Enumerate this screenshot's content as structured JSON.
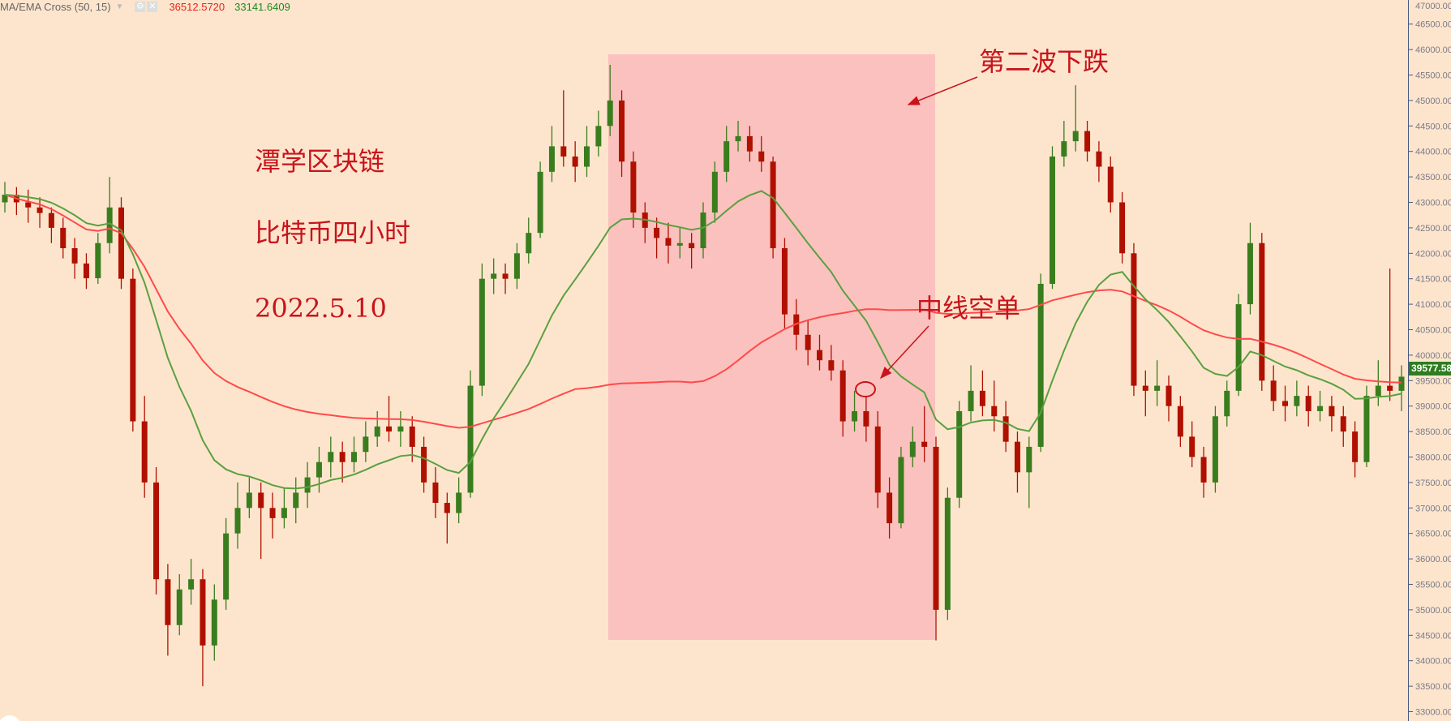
{
  "indicator": {
    "name": "MA/EMA Cross (50, 15)",
    "ma_value": "36512.5720",
    "ema_value": "33141.6409",
    "icons": [
      "caret-down-icon",
      "gear-icon",
      "close-icon"
    ]
  },
  "annotations": {
    "title": "潭学区块链",
    "subtitle": "比特币四小时",
    "date": "2022.5.10",
    "wave_label": "第二波下跌",
    "short_label": "中线空单"
  },
  "colors": {
    "background": "#fde5cd",
    "up": "#3a7d1e",
    "down": "#b01000",
    "ma50": "#ff4a4a",
    "ema15": "#5aa040",
    "highlight": "#fbbcbc",
    "annotation": "#c8141c"
  },
  "chart_data": {
    "type": "candlestick",
    "title": "",
    "ylim": [
      32900,
      47000
    ],
    "yticks": [
      47000,
      46500,
      46000,
      45500,
      45000,
      44500,
      44000,
      43500,
      43000,
      42500,
      42000,
      41500,
      41000,
      40500,
      40000,
      39500,
      39000,
      38500,
      38000,
      37500,
      37000,
      36500,
      36000,
      35500,
      35000,
      34500,
      34000,
      33500,
      33000
    ],
    "last_price": "39577.58",
    "indicators": [
      {
        "name": "MA",
        "period": 50
      },
      {
        "name": "EMA",
        "period": 15
      }
    ],
    "candles": [
      [
        43000,
        43400,
        42800,
        43150
      ],
      [
        43150,
        43300,
        42750,
        43000
      ],
      [
        43000,
        43250,
        42600,
        42900
      ],
      [
        42900,
        43100,
        42500,
        42790
      ],
      [
        42790,
        42900,
        42200,
        42500
      ],
      [
        42500,
        42700,
        41900,
        42100
      ],
      [
        42100,
        42300,
        41500,
        41800
      ],
      [
        41800,
        42000,
        41300,
        41510
      ],
      [
        41510,
        42400,
        41400,
        42200
      ],
      [
        42200,
        43500,
        42000,
        42900
      ],
      [
        42900,
        43100,
        41300,
        41500
      ],
      [
        41500,
        41700,
        38500,
        38700
      ],
      [
        38700,
        39200,
        37200,
        37500
      ],
      [
        37500,
        37800,
        35300,
        35600
      ],
      [
        35600,
        35900,
        34100,
        34700
      ],
      [
        34700,
        35700,
        34500,
        35400
      ],
      [
        35400,
        36000,
        35100,
        35600
      ],
      [
        35600,
        35800,
        33500,
        34300
      ],
      [
        34300,
        35500,
        34000,
        35200
      ],
      [
        35200,
        36800,
        35000,
        36500
      ],
      [
        36500,
        37500,
        36200,
        37000
      ],
      [
        37000,
        37600,
        36800,
        37300
      ],
      [
        37300,
        37500,
        36000,
        37000
      ],
      [
        37000,
        37300,
        36400,
        36800
      ],
      [
        36800,
        37400,
        36600,
        37000
      ],
      [
        37000,
        37600,
        36700,
        37300
      ],
      [
        37300,
        37900,
        37000,
        37600
      ],
      [
        37600,
        38200,
        37300,
        37900
      ],
      [
        37900,
        38400,
        37600,
        38100
      ],
      [
        38100,
        38300,
        37500,
        37900
      ],
      [
        37900,
        38400,
        37700,
        38100
      ],
      [
        38100,
        38700,
        37900,
        38400
      ],
      [
        38400,
        38900,
        38200,
        38600
      ],
      [
        38600,
        39200,
        38300,
        38500
      ],
      [
        38500,
        38900,
        38200,
        38600
      ],
      [
        38600,
        38800,
        37900,
        38200
      ],
      [
        38200,
        38400,
        37300,
        37500
      ],
      [
        37500,
        37800,
        36800,
        37100
      ],
      [
        37100,
        37300,
        36300,
        36900
      ],
      [
        36900,
        37600,
        36700,
        37300
      ],
      [
        37300,
        39700,
        37200,
        39400
      ],
      [
        39400,
        41800,
        39200,
        41500
      ],
      [
        41500,
        41900,
        41200,
        41600
      ],
      [
        41600,
        41800,
        41200,
        41500
      ],
      [
        41500,
        42200,
        41300,
        42000
      ],
      [
        42000,
        42700,
        41800,
        42400
      ],
      [
        42400,
        43800,
        42300,
        43600
      ],
      [
        43600,
        44500,
        43400,
        44100
      ],
      [
        44100,
        45200,
        43700,
        43900
      ],
      [
        43900,
        44200,
        43400,
        43700
      ],
      [
        43700,
        44500,
        43500,
        44100
      ],
      [
        44100,
        44800,
        43900,
        44500
      ],
      [
        44500,
        45700,
        44300,
        45000
      ],
      [
        45000,
        45200,
        43500,
        43800
      ],
      [
        43800,
        44000,
        42500,
        42800
      ],
      [
        42800,
        43000,
        42200,
        42500
      ],
      [
        42500,
        42700,
        41900,
        42300
      ],
      [
        42300,
        42600,
        41800,
        42150
      ],
      [
        42150,
        42500,
        41900,
        42200
      ],
      [
        42200,
        42400,
        41700,
        42100
      ],
      [
        42100,
        43000,
        41900,
        42800
      ],
      [
        42800,
        43800,
        42600,
        43600
      ],
      [
        43600,
        44500,
        43400,
        44200
      ],
      [
        44200,
        44600,
        44000,
        44300
      ],
      [
        44300,
        44500,
        43800,
        44000
      ],
      [
        44000,
        44300,
        43600,
        43800
      ],
      [
        43800,
        43900,
        41900,
        42100
      ],
      [
        42100,
        42300,
        40500,
        40800
      ],
      [
        40800,
        41100,
        40100,
        40400
      ],
      [
        40400,
        40700,
        39800,
        40100
      ],
      [
        40100,
        40400,
        39700,
        39900
      ],
      [
        39900,
        40200,
        39500,
        39700
      ],
      [
        39700,
        39900,
        38400,
        38700
      ],
      [
        38700,
        39300,
        38500,
        38900
      ],
      [
        38900,
        39200,
        38300,
        38600
      ],
      [
        38600,
        38900,
        37000,
        37300
      ],
      [
        37300,
        37600,
        36400,
        36700
      ],
      [
        36700,
        38200,
        36600,
        38000
      ],
      [
        38000,
        38600,
        37800,
        38300
      ],
      [
        38300,
        39000,
        37900,
        38200
      ],
      [
        38200,
        38400,
        34400,
        35000
      ],
      [
        35000,
        37400,
        34800,
        37200
      ],
      [
        37200,
        39100,
        37000,
        38900
      ],
      [
        38900,
        39800,
        38700,
        39300
      ],
      [
        39300,
        39700,
        38800,
        39000
      ],
      [
        39000,
        39500,
        38500,
        38800
      ],
      [
        38800,
        39100,
        38100,
        38300
      ],
      [
        38300,
        38500,
        37300,
        37700
      ],
      [
        37700,
        38400,
        37000,
        38200
      ],
      [
        38200,
        41600,
        38100,
        41400
      ],
      [
        41400,
        44100,
        41300,
        43900
      ],
      [
        43900,
        44600,
        43700,
        44200
      ],
      [
        44200,
        45300,
        44000,
        44400
      ],
      [
        44400,
        44600,
        43800,
        44000
      ],
      [
        44000,
        44200,
        43400,
        43700
      ],
      [
        43700,
        43900,
        42800,
        43000
      ],
      [
        43000,
        43200,
        41800,
        42000
      ],
      [
        42000,
        42200,
        39200,
        39400
      ],
      [
        39400,
        39700,
        38800,
        39300
      ],
      [
        39300,
        39900,
        39000,
        39400
      ],
      [
        39400,
        39600,
        38700,
        39000
      ],
      [
        39000,
        39200,
        38200,
        38400
      ],
      [
        38400,
        38700,
        37800,
        38000
      ],
      [
        38000,
        38200,
        37200,
        37500
      ],
      [
        37500,
        39000,
        37300,
        38800
      ],
      [
        38800,
        39500,
        38600,
        39300
      ],
      [
        39300,
        41200,
        39200,
        41000
      ],
      [
        41000,
        42600,
        40800,
        42200
      ],
      [
        42200,
        42400,
        39300,
        39500
      ],
      [
        39500,
        39800,
        38900,
        39100
      ],
      [
        39100,
        39400,
        38700,
        39000
      ],
      [
        39000,
        39500,
        38800,
        39200
      ],
      [
        39200,
        39400,
        38600,
        38900
      ],
      [
        38900,
        39300,
        38700,
        39000
      ],
      [
        39000,
        39200,
        38500,
        38800
      ],
      [
        38800,
        39000,
        38200,
        38500
      ],
      [
        38500,
        38700,
        37600,
        37900
      ],
      [
        37900,
        39400,
        37800,
        39200
      ],
      [
        39200,
        39900,
        39000,
        39400
      ],
      [
        39400,
        41700,
        39100,
        39300
      ],
      [
        39300,
        39800,
        38900,
        39577
      ]
    ]
  }
}
